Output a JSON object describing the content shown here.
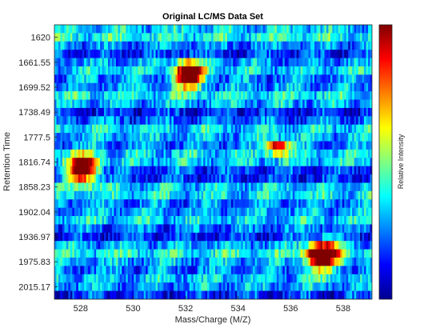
{
  "chart_data": {
    "type": "heatmap",
    "title": "Original LC/MS Data Set",
    "xlabel": "Mass/Charge (M/Z)",
    "ylabel": "Retention Time",
    "colorbar_label": "Relative Intensity",
    "colormap": "jet",
    "xlim": [
      527,
      539.1
    ],
    "x_ticks": [
      528,
      530,
      532,
      534,
      536,
      538
    ],
    "x_tick_labels": [
      "528",
      "530",
      "532",
      "534",
      "536",
      "538"
    ],
    "y_tick_labels": [
      "1620",
      "1661.55",
      "1699.52",
      "1738.49",
      "1777.5",
      "1816.74",
      "1858.23",
      "1902.04",
      "1936.97",
      "1975.83",
      "2015.17"
    ],
    "y_tick_rows": [
      1,
      4,
      7,
      10,
      13,
      16,
      19,
      22,
      25,
      28,
      31
    ],
    "rows": 33,
    "peaks": [
      {
        "mz": 532.1,
        "rt": 1680,
        "width_mz": 0.55,
        "width_rt": 18,
        "intensity": 1.0
      },
      {
        "mz": 528.1,
        "rt": 1830,
        "width_mz": 0.55,
        "width_rt": 22,
        "intensity": 1.0
      },
      {
        "mz": 537.2,
        "rt": 1965,
        "width_mz": 0.6,
        "width_rt": 22,
        "intensity": 1.0
      },
      {
        "mz": 535.5,
        "rt": 1793,
        "width_mz": 0.45,
        "width_rt": 7,
        "intensity": 0.78
      }
    ]
  }
}
